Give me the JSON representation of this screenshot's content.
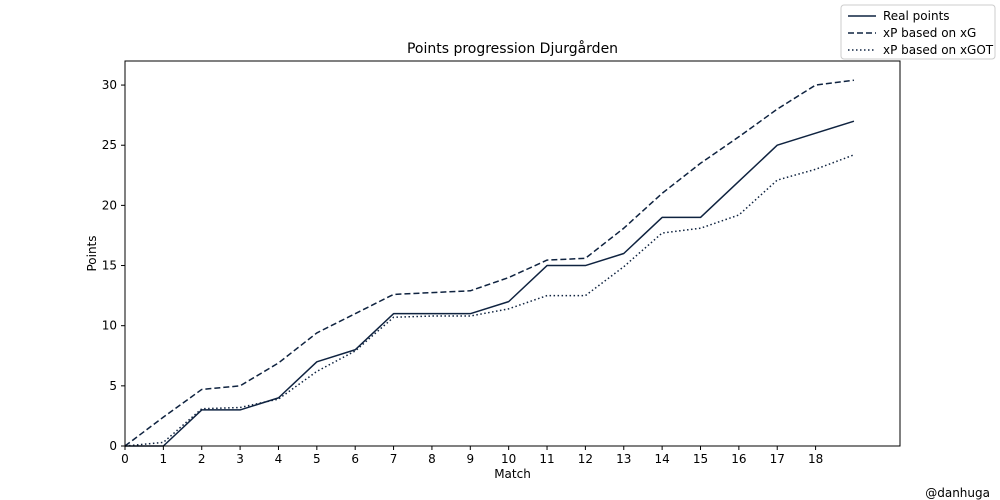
{
  "chart_data": {
    "type": "line",
    "title": "Points progression Djurgården",
    "xlabel": "Match",
    "ylabel": "Points",
    "xlim": [
      0,
      20.2
    ],
    "ylim": [
      0,
      32
    ],
    "xticks": [
      0,
      1,
      2,
      3,
      4,
      5,
      6,
      7,
      8,
      9,
      10,
      11,
      12,
      13,
      14,
      15,
      16,
      17,
      18
    ],
    "yticks": [
      0,
      5,
      10,
      15,
      20,
      25,
      30
    ],
    "grid": false,
    "legend_position": "top-right",
    "color": "#0f2340",
    "x": [
      0,
      1,
      2,
      3,
      4,
      5,
      6,
      7,
      8,
      9,
      10,
      11,
      12,
      13,
      14,
      15,
      16,
      17,
      18,
      19
    ],
    "series": [
      {
        "name": "Real points",
        "style": "solid",
        "values": [
          0,
          0,
          3,
          3,
          4,
          7,
          8,
          11,
          11,
          11,
          12,
          15,
          15,
          16,
          19,
          19,
          22,
          25,
          26,
          27
        ]
      },
      {
        "name": "xP based on xG",
        "style": "dashed",
        "values": [
          0,
          2.4,
          4.7,
          5.0,
          6.9,
          9.4,
          11.0,
          12.6,
          12.75,
          12.9,
          14.0,
          15.45,
          15.6,
          18.1,
          21.0,
          23.5,
          25.7,
          28.0,
          30.0,
          30.4
        ]
      },
      {
        "name": "xP based on xGOT",
        "style": "dotted",
        "values": [
          0,
          0.3,
          3.1,
          3.2,
          3.9,
          6.2,
          7.9,
          10.7,
          10.8,
          10.8,
          11.4,
          12.5,
          12.5,
          14.9,
          17.7,
          18.1,
          19.2,
          22.1,
          23.0,
          24.2
        ]
      }
    ]
  },
  "credit": "@danhuga"
}
